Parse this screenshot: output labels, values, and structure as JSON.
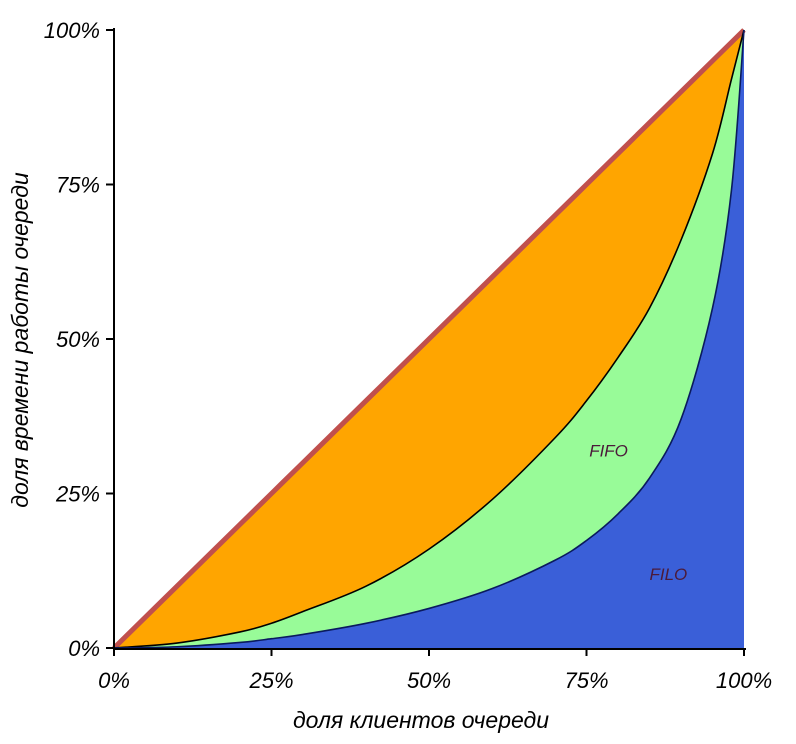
{
  "chart_data": {
    "type": "area",
    "xlabel": "доля клиентов очереди",
    "ylabel": "доля времени работы очереди",
    "xlim": [
      0,
      100
    ],
    "ylim": [
      0,
      100
    ],
    "x_ticks": [
      "0%",
      "25%",
      "50%",
      "75%",
      "100%"
    ],
    "y_ticks": [
      "0%",
      "25%",
      "50%",
      "75%",
      "100%"
    ],
    "grid": false,
    "x": [
      0,
      10,
      20,
      25,
      30,
      40,
      50,
      60,
      70,
      75,
      80,
      85,
      90,
      95,
      98,
      100
    ],
    "series": [
      {
        "values": [
          0,
          10,
          20,
          25,
          30,
          40,
          50,
          60,
          70,
          75,
          80,
          85,
          90,
          95,
          98,
          100
        ],
        "color": "#c0504d"
      },
      {
        "values": [
          0,
          0.8,
          2.6,
          4,
          5.9,
          10,
          16,
          24,
          34,
          40,
          47,
          55,
          66,
          80,
          92,
          100
        ],
        "color": "#ffa500"
      },
      {
        "name": "FIFO",
        "values": [
          0,
          0.2,
          0.9,
          1.5,
          2.2,
          4,
          6.4,
          9.6,
          14.2,
          17.4,
          21.7,
          27.5,
          37,
          55,
          74,
          100
        ],
        "color": "#98fb98"
      },
      {
        "name": "FILO",
        "values": [
          0,
          0,
          0,
          0,
          0,
          0,
          0,
          0,
          0,
          0,
          0,
          0,
          0,
          0,
          0,
          0
        ],
        "color": "#3a5fd8"
      }
    ],
    "annotations": [
      {
        "text": "FIFO",
        "x": 78.5,
        "y": 31
      },
      {
        "text": "FILO",
        "x": 88,
        "y": 11
      }
    ]
  }
}
